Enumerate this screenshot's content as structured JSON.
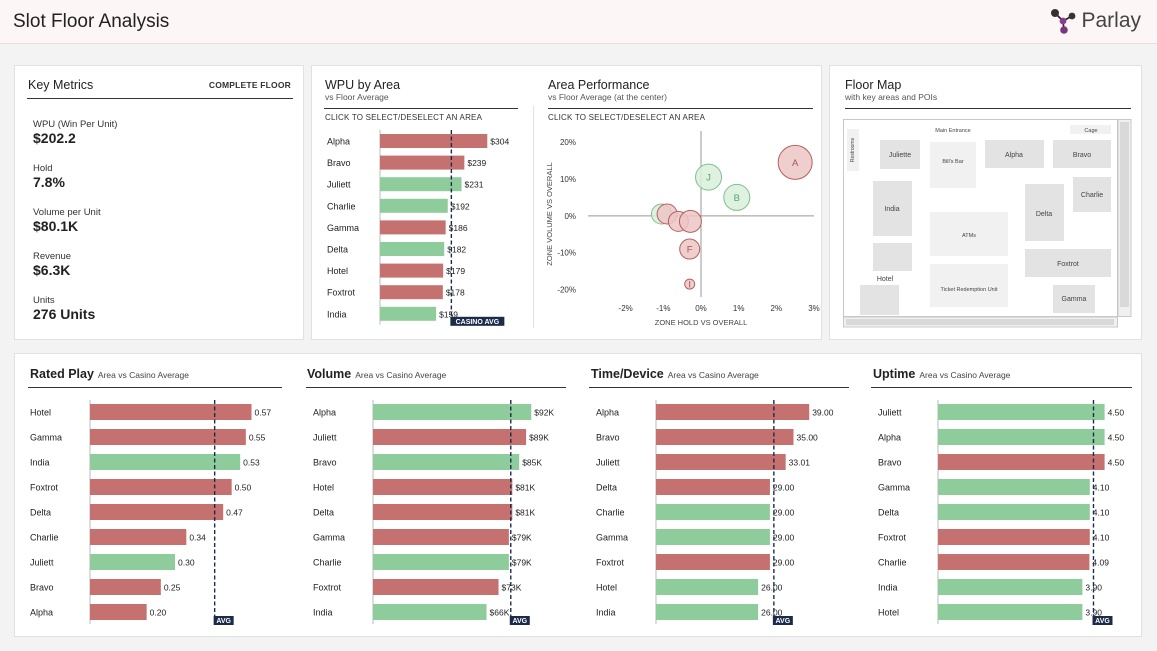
{
  "header": {
    "title": "Slot Floor Analysis",
    "logo": "Parlay",
    "logo_icon": "molecule-logo-icon"
  },
  "key_metrics": {
    "title": "Key Metrics",
    "scope": "COMPLETE FLOOR",
    "items": [
      {
        "label": "WPU (Win Per Unit)",
        "value": "$202.2"
      },
      {
        "label": "Hold",
        "value": "7.8%"
      },
      {
        "label": "Volume per Unit",
        "value": "$80.1K"
      },
      {
        "label": "Revenue",
        "value": "$6.3K"
      },
      {
        "label": "Units",
        "value": "276 Units"
      }
    ]
  },
  "wpu": {
    "title": "WPU by Area",
    "subtitle": "vs Floor Average",
    "hint": "CLICK TO SELECT/DESELECT AN AREA",
    "avg_label": "CASINO AVG"
  },
  "area_perf": {
    "title": "Area Performance",
    "subtitle": "vs Floor Average (at the center)",
    "hint": "CLICK TO SELECT/DESELECT AN AREA"
  },
  "floor_map": {
    "title": "Floor Map",
    "subtitle": "with key areas and POIs",
    "labels": {
      "restrooms": "Restrooms",
      "main_entrance": "Main Entrance",
      "cage": "Cage",
      "juliette": "Juliette",
      "bills_bar": "Bill's Bar",
      "alpha": "Alpha",
      "bravo": "Bravo",
      "charlie": "Charlie",
      "india": "India",
      "delta": "Delta",
      "atms": "ATMs",
      "foxtrot": "Foxtrot",
      "hotel": "Hotel",
      "ticket": "Ticket Redemption Unit",
      "gamma": "Gamma"
    }
  },
  "bottom": {
    "avg_label": "AVG",
    "sections": [
      {
        "title": "Rated Play",
        "subtitle": "Area vs Casino Average"
      },
      {
        "title": "Volume",
        "subtitle": "Area vs Casino Average"
      },
      {
        "title": "Time/Device",
        "subtitle": "Area vs Casino Average"
      },
      {
        "title": "Uptime",
        "subtitle": "Area vs Casino Average"
      }
    ]
  },
  "colors": {
    "above": "#8fcc9c",
    "below": "#c5716f",
    "avg_line": "#1d2b4a",
    "bubble_green": "#d9efdc",
    "bubble_red": "#ecc6c5"
  },
  "chart_data": [
    {
      "id": "wpu",
      "type": "bar",
      "orientation": "horizontal",
      "categories": [
        "Alpha",
        "Bravo",
        "Juliett",
        "Charlie",
        "Gamma",
        "Delta",
        "Hotel",
        "Foxtrot",
        "India"
      ],
      "values": [
        304,
        239,
        231,
        192,
        186,
        182,
        179,
        178,
        159
      ],
      "labels": [
        "$304",
        "$239",
        "$231",
        "$192",
        "$186",
        "$182",
        "$179",
        "$178",
        "$159"
      ],
      "status": [
        "below",
        "below",
        "above",
        "above",
        "below",
        "above",
        "below",
        "below",
        "above"
      ],
      "avg": 202.2,
      "xlim": [
        0,
        340
      ]
    },
    {
      "id": "area_performance",
      "type": "scatter",
      "xlabel": "ZONE HOLD VS OVERALL",
      "ylabel": "ZONE VOLUME VS OVERALL",
      "xlim": [
        -3,
        3
      ],
      "ylim": [
        -22,
        23
      ],
      "xticks": [
        "-2%",
        "-1%",
        "0%",
        "1%",
        "2%",
        "3%"
      ],
      "xtick_values": [
        -2,
        -1,
        0,
        1,
        2,
        3
      ],
      "yticks": [
        "20%",
        "10%",
        "0%",
        "-10%",
        "-20%"
      ],
      "ytick_values": [
        20,
        10,
        0,
        -10,
        -20
      ],
      "points": [
        {
          "label": "A",
          "x": 2.5,
          "y": 14.5,
          "size": 17,
          "status": "below"
        },
        {
          "label": "J",
          "x": 0.2,
          "y": 10.5,
          "size": 13,
          "status": "above"
        },
        {
          "label": "B",
          "x": 0.95,
          "y": 5,
          "size": 13,
          "status": "above"
        },
        {
          "label": "",
          "x": -1.05,
          "y": 0.5,
          "size": 10,
          "status": "above"
        },
        {
          "label": "",
          "x": -0.9,
          "y": 0.5,
          "size": 10,
          "status": "below"
        },
        {
          "label": "",
          "x": -0.6,
          "y": -1.5,
          "size": 10,
          "status": "below"
        },
        {
          "label": "",
          "x": -0.28,
          "y": -1.5,
          "size": 11,
          "status": "below"
        },
        {
          "label": "F",
          "x": -0.3,
          "y": -9,
          "size": 10,
          "status": "below"
        },
        {
          "label": "I",
          "x": -0.3,
          "y": -18.5,
          "size": 5,
          "status": "below"
        }
      ]
    },
    {
      "id": "rated_play",
      "type": "bar",
      "orientation": "horizontal",
      "categories": [
        "Hotel",
        "Gamma",
        "India",
        "Foxtrot",
        "Delta",
        "Charlie",
        "Juliett",
        "Bravo",
        "Alpha"
      ],
      "values": [
        0.57,
        0.55,
        0.53,
        0.5,
        0.47,
        0.34,
        0.3,
        0.25,
        0.2
      ],
      "labels": [
        "0.57",
        "0.55",
        "0.53",
        "0.50",
        "0.47",
        "0.34",
        "0.30",
        "0.25",
        "0.20"
      ],
      "status": [
        "below",
        "below",
        "above",
        "below",
        "below",
        "below",
        "above",
        "below",
        "below"
      ],
      "avg": 0.44,
      "xlim": [
        0,
        0.6
      ]
    },
    {
      "id": "volume",
      "type": "bar",
      "orientation": "horizontal",
      "categories": [
        "Alpha",
        "Juliett",
        "Bravo",
        "Hotel",
        "Delta",
        "Gamma",
        "Charlie",
        "Foxtrot",
        "India"
      ],
      "values": [
        92,
        89,
        85,
        81,
        81,
        79,
        79,
        73,
        66
      ],
      "labels": [
        "$92K",
        "$89K",
        "$85K",
        "$81K",
        "$81K",
        "$79K",
        "$79K",
        "$73K",
        "$66K"
      ],
      "status": [
        "above",
        "below",
        "above",
        "below",
        "below",
        "below",
        "above",
        "below",
        "above"
      ],
      "avg": 80.1,
      "xlim": [
        0,
        100
      ]
    },
    {
      "id": "time_device",
      "type": "bar",
      "orientation": "horizontal",
      "categories": [
        "Alpha",
        "Bravo",
        "Juliett",
        "Delta",
        "Charlie",
        "Gamma",
        "Foxtrot",
        "Hotel",
        "India"
      ],
      "values": [
        39.0,
        35.0,
        33.01,
        29.0,
        29.0,
        29.0,
        29.0,
        26.0,
        26.0
      ],
      "labels": [
        "39.00",
        "35.00",
        "33.01",
        "29.00",
        "29.00",
        "29.00",
        "29.00",
        "26.00",
        "26.00"
      ],
      "status": [
        "below",
        "below",
        "below",
        "below",
        "above",
        "above",
        "below",
        "above",
        "above"
      ],
      "avg": 30,
      "xlim": [
        0,
        42
      ]
    },
    {
      "id": "uptime",
      "type": "bar",
      "orientation": "horizontal",
      "categories": [
        "Juliett",
        "Alpha",
        "Bravo",
        "Gamma",
        "Delta",
        "Foxtrot",
        "Charlie",
        "India",
        "Hotel"
      ],
      "values": [
        4.5,
        4.5,
        4.5,
        4.1,
        4.1,
        4.1,
        4.09,
        3.9,
        3.9
      ],
      "labels": [
        "4.50",
        "4.50",
        "4.50",
        "4.10",
        "4.10",
        "4.10",
        "4.09",
        "3.90",
        "3.90"
      ],
      "status": [
        "above",
        "above",
        "below",
        "above",
        "above",
        "below",
        "below",
        "above",
        "above"
      ],
      "avg": 4.2,
      "xlim": [
        0,
        4.7
      ]
    }
  ]
}
